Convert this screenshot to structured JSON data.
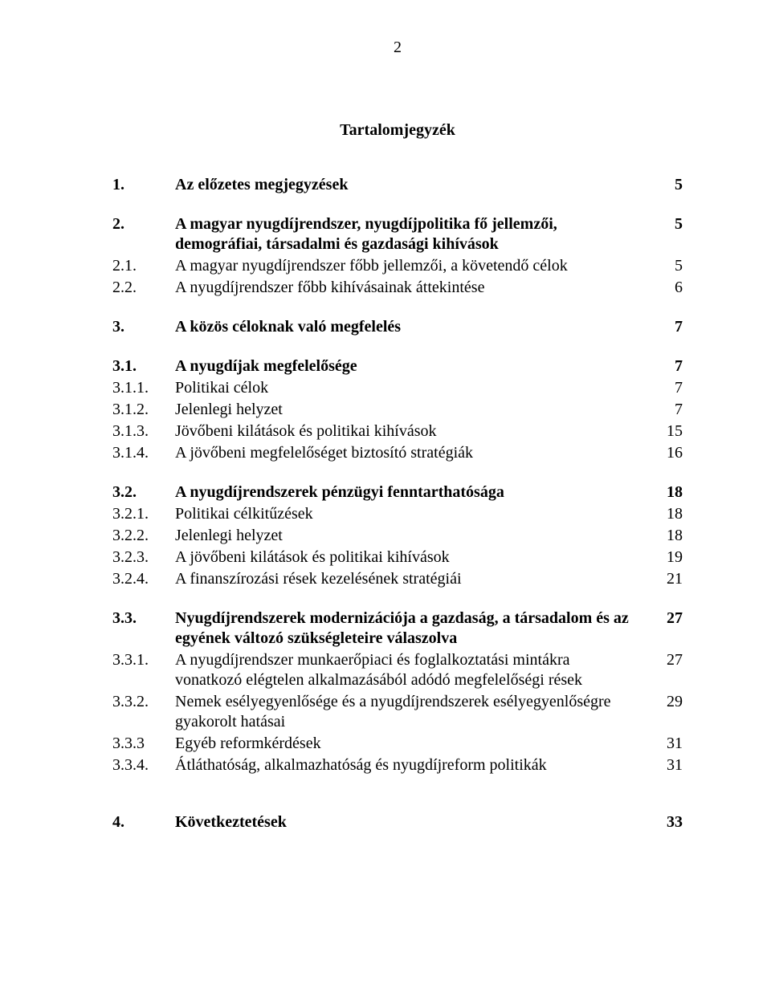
{
  "page_number": "2",
  "title": "Tartalomjegyzék",
  "toc": [
    {
      "num": "1.",
      "label": "Az előzetes megjegyzések",
      "page": "5",
      "bold": true,
      "gap_after": "gap"
    },
    {
      "num": "2.",
      "label": "A magyar nyugdíjrendszer, nyugdíjpolitika fő jellemzői, demográfiai, társadalmi és gazdasági kihívások",
      "page": "5",
      "bold": true,
      "gap_after": ""
    },
    {
      "num": "2.1.",
      "label": "A magyar nyugdíjrendszer főbb jellemzői, a követendő célok",
      "page": "5",
      "bold": false,
      "gap_after": ""
    },
    {
      "num": "2.2.",
      "label": "A nyugdíjrendszer főbb kihívásainak áttekintése",
      "page": "6",
      "bold": false,
      "gap_after": "gap"
    },
    {
      "num": "3.",
      "label": "A közös céloknak való megfelelés",
      "page": "7",
      "bold": true,
      "gap_after": "gap"
    },
    {
      "num": "3.1.",
      "label": "A nyugdíjak megfelelősége",
      "page": "7",
      "bold": true,
      "gap_after": ""
    },
    {
      "num": "3.1.1.",
      "label": "Politikai célok",
      "page": "7",
      "bold": false,
      "gap_after": ""
    },
    {
      "num": "3.1.2.",
      "label": "Jelenlegi helyzet",
      "page": "7",
      "bold": false,
      "gap_after": ""
    },
    {
      "num": "3.1.3.",
      "label": "Jövőbeni kilátások és politikai kihívások",
      "page": "15",
      "bold": false,
      "gap_after": ""
    },
    {
      "num": "3.1.4.",
      "label": "A jövőbeni megfelelőséget biztosító stratégiák",
      "page": "16",
      "bold": false,
      "gap_after": "gap"
    },
    {
      "num": "3.2.",
      "label": "A nyugdíjrendszerek pénzügyi fenntarthatósága",
      "page": "18",
      "bold": true,
      "gap_after": ""
    },
    {
      "num": "3.2.1.",
      "label": "Politikai célkitűzések",
      "page": "18",
      "bold": false,
      "gap_after": ""
    },
    {
      "num": "3.2.2.",
      "label": "Jelenlegi helyzet",
      "page": "18",
      "bold": false,
      "gap_after": ""
    },
    {
      "num": "3.2.3.",
      "label": "A jövőbeni kilátások és politikai kihívások",
      "page": "19",
      "bold": false,
      "gap_after": ""
    },
    {
      "num": "3.2.4.",
      "label": "A finanszírozási rések kezelésének stratégiái",
      "page": "21",
      "bold": false,
      "gap_after": "gap"
    },
    {
      "num": "3.3.",
      "label": "Nyugdíjrendszerek modernizációja a gazdaság, a társadalom és az egyének változó szükségleteire válaszolva",
      "page": "27",
      "bold": true,
      "gap_after": ""
    },
    {
      "num": "3.3.1.",
      "label": "A nyugdíjrendszer munkaerőpiaci és foglalkoztatási mintákra vonatkozó elégtelen alkalmazásából adódó megfelelőségi rések",
      "page": "27",
      "bold": false,
      "gap_after": ""
    },
    {
      "num": "3.3.2.",
      "label": "Nemek esélyegyenlősége és a nyugdíjrendszerek esélyegyenlőségre gyakorolt hatásai",
      "page": "29",
      "bold": false,
      "gap_after": ""
    },
    {
      "num": "3.3.3",
      "label": "Egyéb reformkérdések",
      "page": "31",
      "bold": false,
      "gap_after": ""
    },
    {
      "num": "3.3.4.",
      "label": "Átláthatóság, alkalmazhatóság és nyugdíjreform politikák",
      "page": "31",
      "bold": false,
      "gap_after": "gap"
    },
    {
      "num": "",
      "label": "",
      "page": "",
      "bold": false,
      "gap_after": "gap"
    },
    {
      "num": "4.",
      "label": "Következtetések",
      "page": "33",
      "bold": true,
      "gap_after": ""
    }
  ]
}
